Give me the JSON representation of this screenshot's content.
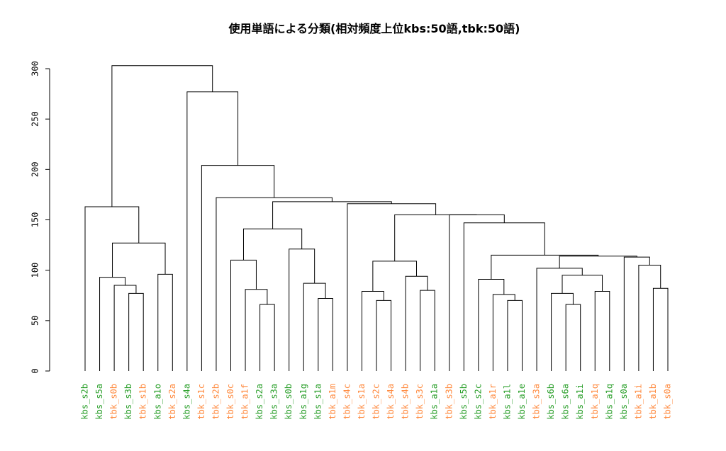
{
  "chart_data": {
    "type": "dendrogram",
    "title": "使用単語による分類(相対頻度上位kbs:50語,tbk:50語)",
    "xlabel": "",
    "ylabel": "",
    "ylim": [
      0,
      300
    ],
    "y_ticks": [
      0,
      50,
      100,
      150,
      200,
      250,
      300
    ],
    "colors": {
      "kbs": "#2ca02c",
      "tbk": "#ff8c42",
      "line": "#000000"
    },
    "leaves": [
      {
        "label": "kbs_s2b",
        "group": "kbs"
      },
      {
        "label": "kbs_s5a",
        "group": "kbs"
      },
      {
        "label": "tbk_s0b",
        "group": "tbk"
      },
      {
        "label": "kbs_s3b",
        "group": "kbs"
      },
      {
        "label": "tbk_s1b",
        "group": "tbk"
      },
      {
        "label": "kbs_a1o",
        "group": "kbs"
      },
      {
        "label": "tbk_s2a",
        "group": "tbk"
      },
      {
        "label": "kbs_s4a",
        "group": "kbs"
      },
      {
        "label": "tbk_s1c",
        "group": "tbk"
      },
      {
        "label": "tbk_s2b",
        "group": "tbk"
      },
      {
        "label": "tbk_s0c",
        "group": "tbk"
      },
      {
        "label": "tbk_a1f",
        "group": "tbk"
      },
      {
        "label": "kbs_s2a",
        "group": "kbs"
      },
      {
        "label": "kbs_s3a",
        "group": "kbs"
      },
      {
        "label": "kbs_s0b",
        "group": "kbs"
      },
      {
        "label": "kbs_a1g",
        "group": "kbs"
      },
      {
        "label": "kbs_s1a",
        "group": "kbs"
      },
      {
        "label": "tbk_a1m",
        "group": "tbk"
      },
      {
        "label": "tbk_s4c",
        "group": "tbk"
      },
      {
        "label": "tbk_s1a",
        "group": "tbk"
      },
      {
        "label": "tbk_s2c",
        "group": "tbk"
      },
      {
        "label": "tbk_s4a",
        "group": "tbk"
      },
      {
        "label": "tbk_s4b",
        "group": "tbk"
      },
      {
        "label": "tbk_s3c",
        "group": "tbk"
      },
      {
        "label": "kbs_a1a",
        "group": "kbs"
      },
      {
        "label": "tbk_s3b",
        "group": "tbk"
      },
      {
        "label": "kbs_s5b",
        "group": "kbs"
      },
      {
        "label": "kbs_s2c",
        "group": "kbs"
      },
      {
        "label": "tbk_a1r",
        "group": "tbk"
      },
      {
        "label": "kbs_a1l",
        "group": "kbs"
      },
      {
        "label": "kbs_a1e",
        "group": "kbs"
      },
      {
        "label": "tbk_s3a",
        "group": "tbk"
      },
      {
        "label": "kbs_s6b",
        "group": "kbs"
      },
      {
        "label": "kbs_s6a",
        "group": "kbs"
      },
      {
        "label": "kbs_a1i",
        "group": "kbs"
      },
      {
        "label": "tbk_a1q",
        "group": "tbk"
      },
      {
        "label": "kbs_a1q",
        "group": "kbs"
      },
      {
        "label": "kbs_s0a",
        "group": "kbs"
      },
      {
        "label": "tbk_a1i",
        "group": "tbk"
      },
      {
        "label": "tbk_a1b",
        "group": "tbk"
      },
      {
        "label": "tbk_s0a",
        "group": "tbk"
      }
    ],
    "merges": [
      {
        "id": "n1",
        "left": 3,
        "right": 4,
        "height": 77
      },
      {
        "id": "n2",
        "left": 2,
        "right": "n1",
        "height": 85
      },
      {
        "id": "n3",
        "left": 1,
        "right": "n2",
        "height": 93
      },
      {
        "id": "n4",
        "left": 5,
        "right": 6,
        "height": 96
      },
      {
        "id": "n5",
        "left": "n3",
        "right": "n4",
        "height": 127
      },
      {
        "id": "n6",
        "left": 0,
        "right": "n5",
        "height": 163
      },
      {
        "id": "n7",
        "left": 12,
        "right": 13,
        "height": 66
      },
      {
        "id": "n8",
        "left": 11,
        "right": "n7",
        "height": 81
      },
      {
        "id": "n9",
        "left": 10,
        "right": "n8",
        "height": 110
      },
      {
        "id": "n10",
        "left": 16,
        "right": 17,
        "height": 72
      },
      {
        "id": "n11",
        "left": 15,
        "right": "n10",
        "height": 87
      },
      {
        "id": "n12",
        "left": 14,
        "right": "n11",
        "height": 121
      },
      {
        "id": "n13",
        "left": "n9",
        "right": "n12",
        "height": 141
      },
      {
        "id": "n14",
        "left": 20,
        "right": 21,
        "height": 70
      },
      {
        "id": "n15",
        "left": 19,
        "right": "n14",
        "height": 79
      },
      {
        "id": "n16",
        "left": 23,
        "right": 24,
        "height": 80
      },
      {
        "id": "n17",
        "left": 22,
        "right": "n16",
        "height": 94
      },
      {
        "id": "n18",
        "left": "n15",
        "right": "n17",
        "height": 109
      },
      {
        "id": "n19",
        "left": 29,
        "right": 30,
        "height": 70
      },
      {
        "id": "n20",
        "left": 28,
        "right": "n19",
        "height": 76
      },
      {
        "id": "n21",
        "left": 27,
        "right": "n20",
        "height": 91
      },
      {
        "id": "n22",
        "left": 33,
        "right": 34,
        "height": 66
      },
      {
        "id": "n23",
        "left": 32,
        "right": "n22",
        "height": 77
      },
      {
        "id": "n24",
        "left": 35,
        "right": 36,
        "height": 79
      },
      {
        "id": "n25",
        "left": "n23",
        "right": "n24",
        "height": 95
      },
      {
        "id": "n26",
        "left": 31,
        "right": "n25",
        "height": 102
      },
      {
        "id": "n27",
        "left": 39,
        "right": 40,
        "height": 82
      },
      {
        "id": "n28",
        "left": 38,
        "right": "n27",
        "height": 105
      },
      {
        "id": "n29",
        "left": 37,
        "right": "n28",
        "height": 113
      },
      {
        "id": "n30",
        "left": "n26",
        "right": "n29",
        "height": 114
      },
      {
        "id": "n31",
        "left": "n21",
        "right": "n30",
        "height": 115
      },
      {
        "id": "n32",
        "left": 26,
        "right": "n31",
        "height": 147
      },
      {
        "id": "n33",
        "left": 25,
        "right": "n32",
        "height": 155
      },
      {
        "id": "n34",
        "left": "n18",
        "right": "n33",
        "height": 155
      },
      {
        "id": "n35",
        "left": 18,
        "right": "n34",
        "height": 166
      },
      {
        "id": "n36",
        "left": "n13",
        "right": "n35",
        "height": 168
      },
      {
        "id": "n37",
        "left": 9,
        "right": "n36",
        "height": 172
      },
      {
        "id": "n38",
        "left": 8,
        "right": "n37",
        "height": 204
      },
      {
        "id": "n39",
        "left": 7,
        "right": "n38",
        "height": 277
      },
      {
        "id": "n40",
        "left": "n6",
        "right": "n39",
        "height": 303
      }
    ]
  }
}
